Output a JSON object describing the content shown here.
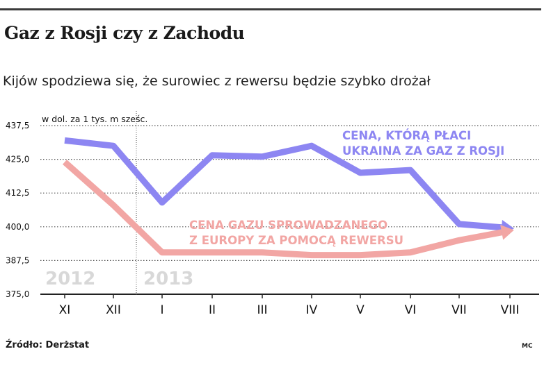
{
  "title": "Gaz z Rosji czy z Zachodu",
  "subtitle": "Kijów spodziewa się, że surowiec z rewersu będzie szybko drożał",
  "source": "Źródło: Derżstat",
  "credit": "MC",
  "colors": {
    "series_russia": "#8d86f2",
    "series_reverse": "#f2a6a4",
    "grid": "#555555"
  },
  "chart_data": {
    "type": "line",
    "unit_label": "w dol. za 1 tys. m sześc.",
    "categories": [
      "XI",
      "XII",
      "I",
      "II",
      "III",
      "IV",
      "V",
      "VI",
      "VII",
      "VIII"
    ],
    "year_labels": [
      "2012",
      "2013"
    ],
    "ylim": [
      375.0,
      437.5
    ],
    "yticks": [
      "437,5",
      "425,0",
      "412,5",
      "400,0",
      "387,5",
      "375,0"
    ],
    "ytick_values": [
      437.5,
      425.0,
      412.5,
      400.0,
      387.5,
      375.0
    ],
    "grid": true,
    "series": [
      {
        "name": "CENA, KTÓRĄ PŁACI UKRAINA ZA GAZ Z ROSJI",
        "label_lines": [
          "CENA, KTÓRĄ PŁACI",
          "UKRAINA ZA GAZ Z ROSJI"
        ],
        "values": [
          432.0,
          430.0,
          409.0,
          426.5,
          426.0,
          430.0,
          420.0,
          421.0,
          401.0,
          399.5
        ]
      },
      {
        "name": "CENA GAZU SPROWADZANEGO Z EUROPY ZA POMOCĄ REWERSU",
        "label_lines": [
          "CENA GAZU SPROWADZANEGO",
          "Z EUROPY ZA POMOCĄ REWERSU"
        ],
        "values": [
          424.0,
          408.0,
          390.5,
          390.5,
          390.5,
          389.5,
          389.5,
          390.5,
          395.0,
          398.5
        ]
      }
    ]
  }
}
